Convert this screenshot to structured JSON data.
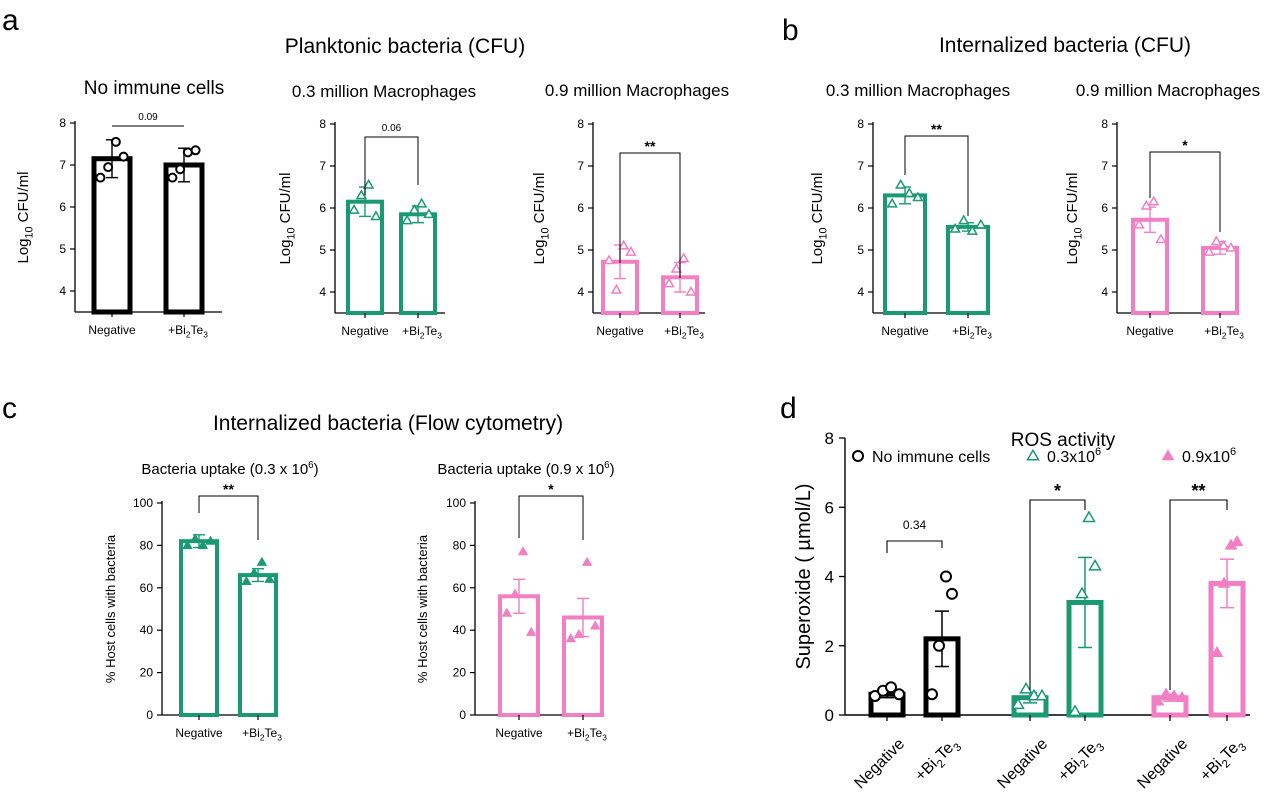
{
  "colors": {
    "black": "#000000",
    "green": "#1a9a73",
    "pink": "#f27ec4"
  },
  "bi2te3": {
    "pre": "+Bi",
    "mid": "Te",
    "sub": "2",
    "sub2": "3"
  },
  "chart_data": [
    {
      "panel": "a",
      "type": "bar",
      "header": "Planktonic bacteria (CFU)",
      "title": "No immune cells",
      "ylabel": "Log10 CFU/ml",
      "ylim": [
        3.5,
        8
      ],
      "yticks": [
        4,
        5,
        6,
        7,
        8
      ],
      "color": "black",
      "marker": "circle",
      "categories": [
        "Negative",
        "+Bi2Te3"
      ],
      "values": [
        7.15,
        7.0
      ],
      "errors": [
        0.45,
        0.4
      ],
      "points": [
        [
          6.7,
          6.95,
          7.55,
          7.2
        ],
        [
          6.7,
          6.9,
          7.3,
          7.35
        ]
      ],
      "significance": "0.09",
      "bracket": "line"
    },
    {
      "panel": "a",
      "type": "bar",
      "title": "0.3 million Macrophages",
      "ylabel": "Log10 CFU/ml",
      "ylim": [
        3.5,
        8
      ],
      "yticks": [
        4,
        5,
        6,
        7,
        8
      ],
      "color": "green",
      "marker": "triangle",
      "categories": [
        "Negative",
        "+Bi2Te3"
      ],
      "values": [
        6.15,
        5.85
      ],
      "errors": [
        0.35,
        0.2
      ],
      "points": [
        [
          5.95,
          6.3,
          6.55,
          5.8
        ],
        [
          5.7,
          5.95,
          6.1,
          5.85
        ]
      ],
      "significance": "0.06",
      "bracket": "bracket"
    },
    {
      "panel": "a",
      "type": "bar",
      "title": "0.9 million Macrophages",
      "ylabel": "Log10 CFU/ml",
      "ylim": [
        3.5,
        8
      ],
      "yticks": [
        4,
        5,
        6,
        7,
        8
      ],
      "color": "pink",
      "marker": "triangle",
      "categories": [
        "Negative",
        "+Bi2Te3"
      ],
      "values": [
        4.72,
        4.35
      ],
      "errors": [
        0.4,
        0.35
      ],
      "points": [
        [
          4.75,
          4.05,
          5.1,
          4.95
        ],
        [
          4.2,
          4.55,
          4.8,
          4.0
        ]
      ],
      "significance": "**",
      "bracket": "bracket"
    },
    {
      "panel": "b",
      "type": "bar",
      "header": "Internalized bacteria (CFU)",
      "title": "0.3 million Macrophages",
      "ylabel": "Log10 CFU/ml",
      "ylim": [
        3.5,
        8
      ],
      "yticks": [
        4,
        5,
        6,
        7,
        8
      ],
      "color": "green",
      "marker": "triangle",
      "categories": [
        "Negative",
        "+Bi2Te3"
      ],
      "values": [
        6.3,
        5.55
      ],
      "errors": [
        0.2,
        0.1
      ],
      "points": [
        [
          6.1,
          6.55,
          6.35,
          6.25
        ],
        [
          5.5,
          5.7,
          5.45,
          5.6
        ]
      ],
      "significance": "**",
      "bracket": "bracket"
    },
    {
      "panel": "b",
      "type": "bar",
      "title": "0.9 million Macrophages",
      "ylabel": "Log10 CFU/ml",
      "ylim": [
        3.5,
        8
      ],
      "yticks": [
        4,
        5,
        6,
        7,
        8
      ],
      "color": "pink",
      "marker": "triangle",
      "categories": [
        "Negative",
        "+Bi2Te3"
      ],
      "values": [
        5.72,
        5.05
      ],
      "errors": [
        0.3,
        0.15
      ],
      "points": [
        [
          5.6,
          6.05,
          6.15,
          5.25
        ],
        [
          4.95,
          5.2,
          5.1,
          5.05
        ]
      ],
      "significance": "*",
      "bracket": "bracket"
    },
    {
      "panel": "c",
      "type": "bar",
      "header": "Internalized bacteria (Flow cytometry)",
      "title": "Bacteria uptake (0.3 x 10",
      "title_sup": "6",
      "title_end": ")",
      "ylabel": "% Host cells with bacteria",
      "ylim": [
        0,
        100
      ],
      "yticks": [
        0,
        20,
        40,
        60,
        80,
        100
      ],
      "color": "green",
      "marker": "triangle-filled",
      "categories": [
        "Negative",
        "+Bi2Te3"
      ],
      "values": [
        82,
        66
      ],
      "errors": [
        3,
        3
      ],
      "points": [
        [
          80,
          83,
          80,
          82
        ],
        [
          63,
          67,
          72,
          64
        ]
      ],
      "significance": "**",
      "bracket": "bracket"
    },
    {
      "panel": "c",
      "type": "bar",
      "title": "Bacteria uptake (0.9 x 10",
      "title_sup": "6",
      "title_end": ")",
      "ylabel": "% Host cells with bacteria",
      "ylim": [
        0,
        100
      ],
      "yticks": [
        0,
        20,
        40,
        60,
        80,
        100
      ],
      "color": "pink",
      "marker": "triangle-filled",
      "categories": [
        "Negative",
        "+Bi2Te3"
      ],
      "values": [
        56,
        46
      ],
      "errors": [
        8,
        9
      ],
      "points": [
        [
          48,
          57,
          77,
          39
        ],
        [
          36,
          38,
          72,
          42
        ]
      ],
      "significance": "*",
      "bracket": "bracket"
    },
    {
      "panel": "d",
      "type": "bar",
      "title": "ROS activity",
      "ylabel": "Superoxide ( µmol/L)",
      "ylim": [
        0,
        8
      ],
      "yticks": [
        0,
        2,
        4,
        6,
        8
      ],
      "categories": [
        "Negative",
        "+Bi2Te3",
        "Negative",
        "+Bi2Te3",
        "Negative",
        "+Bi2Te3"
      ],
      "groups": [
        {
          "legend": "No immune cells",
          "color": "black",
          "marker": "circle",
          "values": [
            0.6,
            2.2
          ],
          "errors": [
            0.1,
            0.8
          ],
          "points": [
            [
              0.55,
              0.7,
              0.8,
              0.6
            ],
            [
              0.6,
              2.0,
              4.0,
              3.5
            ]
          ],
          "significance": "0.34"
        },
        {
          "legend": "0.3x10",
          "legend_sup": "6",
          "color": "green",
          "marker": "triangle",
          "values": [
            0.5,
            3.25
          ],
          "errors": [
            0.15,
            1.3
          ],
          "points": [
            [
              0.3,
              0.75,
              0.55,
              0.55
            ],
            [
              0.1,
              3.5,
              5.7,
              4.3
            ]
          ],
          "significance": "*"
        },
        {
          "legend": "0.9x10",
          "legend_sup": "6",
          "color": "pink",
          "marker": "triangle-filled",
          "values": [
            0.5,
            3.8
          ],
          "errors": [
            0.1,
            0.7
          ],
          "points": [
            [
              0.4,
              0.6,
              0.55,
              0.5
            ],
            [
              1.8,
              3.8,
              4.9,
              5.0
            ]
          ],
          "significance": "**"
        }
      ]
    }
  ],
  "panel_labels": [
    "a",
    "b",
    "c",
    "d"
  ]
}
